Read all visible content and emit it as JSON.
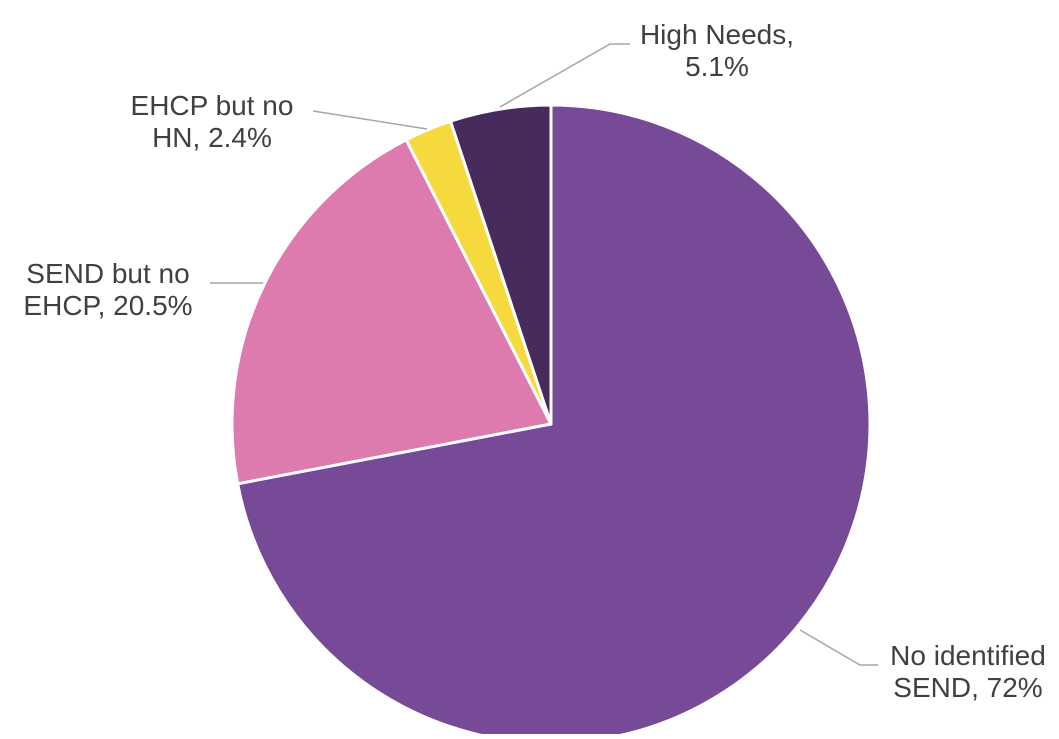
{
  "chart_data": {
    "type": "pie",
    "title": "",
    "slices": [
      {
        "name": "No identified SEND",
        "value": 72.0,
        "label_lines": [
          "No identified",
          "SEND, 72%"
        ],
        "color": "#764A97"
      },
      {
        "name": "SEND but no EHCP",
        "value": 20.5,
        "label_lines": [
          "SEND but no",
          "EHCP, 20.5%"
        ],
        "color": "#DD7AAE"
      },
      {
        "name": "EHCP but no HN",
        "value": 2.4,
        "label_lines": [
          "EHCP but no",
          "HN, 2.4%"
        ],
        "color": "#F5D93D"
      },
      {
        "name": "High Needs",
        "value": 5.1,
        "label_lines": [
          "High Needs,",
          "5.1%"
        ],
        "color": "#472B5C"
      }
    ],
    "start_angle": "12 o'clock",
    "direction": "clockwise",
    "legend": "none",
    "leader_line_color": "#A6A6A6",
    "label_color": "#404040",
    "slice_border_color": "#FFFFFF"
  }
}
